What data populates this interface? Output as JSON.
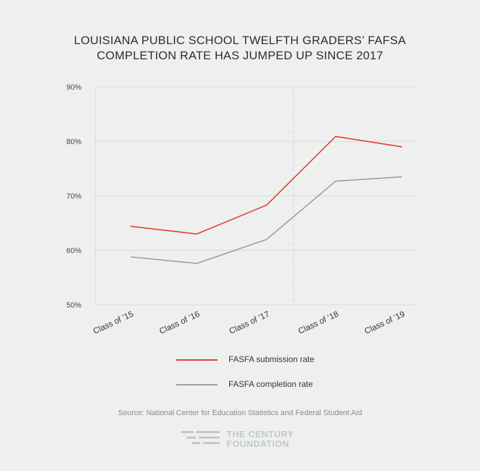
{
  "title": {
    "line1": "LOUISIANA PUBLIC SCHOOL TWELFTH GRADERS’ FAFSA",
    "line2": "COMPLETION RATE HAS JUMPED UP SINCE 2017"
  },
  "chart_data": {
    "type": "line",
    "categories": [
      "Class of ’15",
      "Class of ’16",
      "Class of ’17",
      "Class of ’18",
      "Class of ’19"
    ],
    "yticks": [
      "50%",
      "60%",
      "70%",
      "80%",
      "90%"
    ],
    "ylim": [
      50,
      90
    ],
    "grid": true,
    "series": [
      {
        "name": "FASFA submission rate",
        "color": "#e8382a",
        "values": [
          64.4,
          63.0,
          68.3,
          80.9,
          79.0
        ]
      },
      {
        "name": "FASFA completion rate",
        "color": "#9a9a9a",
        "values": [
          58.8,
          57.6,
          62.0,
          72.7,
          73.5
        ]
      }
    ],
    "legend_position": "bottom"
  },
  "source": "Source: National Center for Education Statistics and Federal Student Aid",
  "logo": {
    "line1": "THE CENTURY",
    "line2": "FOUNDATION",
    "color": "#c4c7c8"
  }
}
